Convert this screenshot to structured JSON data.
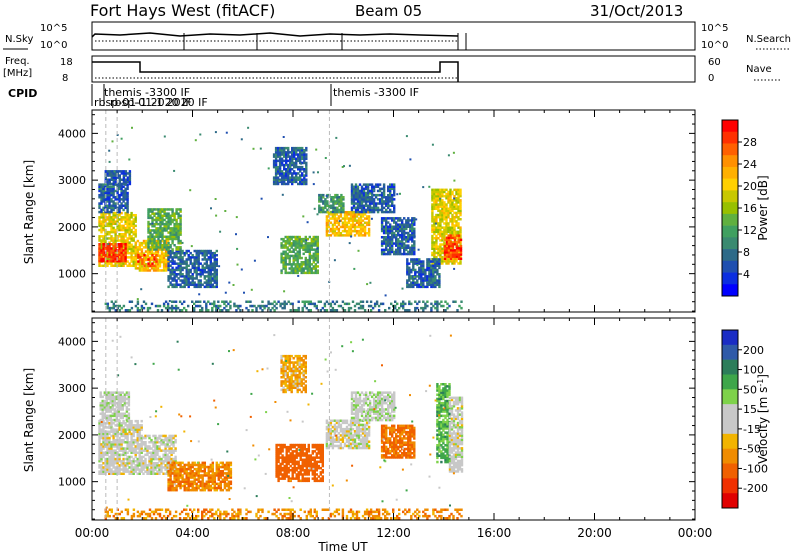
{
  "header": {
    "title": "Fort Hays West (fitACF)",
    "beam": "Beam 05",
    "date": "31/Oct/2013"
  },
  "noise_panel": {
    "left_label": "N.Sky",
    "right_label": "N.Search",
    "left_ticks": [
      "10^5",
      "10^0"
    ],
    "right_ticks": [
      "10^5",
      "10^0"
    ]
  },
  "freq_panel": {
    "left_label_1": "Freq.",
    "left_label_2": "[MHz]",
    "right_label": "Nave",
    "left_ticks": [
      "18",
      "8"
    ],
    "right_ticks": [
      "60",
      "0"
    ]
  },
  "cpid_panel": {
    "label": "CPID",
    "entries": [
      {
        "time": 0.5,
        "text": "themis -3300 IF"
      },
      {
        "time": 0.05,
        "text": "rbsp-01-1 2020 IF"
      },
      {
        "time": 0.8,
        "text": "rbsp-01-1 2020 IF"
      },
      {
        "time": 9.45,
        "text": "themis -3300 IF"
      }
    ]
  },
  "chart_data": {
    "type": "heatmap",
    "x_label": "Time UT",
    "x_ticks": [
      "00:00",
      "04:00",
      "08:00",
      "12:00",
      "16:00",
      "20:00",
      "00:00"
    ],
    "xlim": [
      0,
      24
    ],
    "panels": [
      {
        "name": "power",
        "ylabel": "Slant Range [km]",
        "ylim": [
          180,
          4500
        ],
        "y_ticks": [
          1000,
          2000,
          3000,
          4000
        ],
        "colorbar_label": "Power [dB]",
        "colorbar_ticks": [
          "28",
          "24",
          "20",
          "16",
          "12",
          "8",
          "4"
        ],
        "colorbar_colors": [
          "#ff0000",
          "#ff3000",
          "#ff6000",
          "#ff9000",
          "#ffb000",
          "#ffd000",
          "#c8c800",
          "#98c000",
          "#60b040",
          "#40a060",
          "#3a8a70",
          "#2d6a88",
          "#1f4fb0",
          "#0b2ee0",
          "#0000ff"
        ],
        "regions": [
          {
            "t0": 0.25,
            "t1": 1.7,
            "r0": 1150,
            "r1": 2300,
            "v": 18
          },
          {
            "t0": 0.25,
            "t1": 1.3,
            "r0": 1250,
            "r1": 1650,
            "v": 27
          },
          {
            "t0": 1.7,
            "t1": 3.0,
            "r0": 1050,
            "r1": 1700,
            "v": 20
          },
          {
            "t0": 1.8,
            "t1": 2.6,
            "r0": 1150,
            "r1": 1400,
            "v": 27
          },
          {
            "t0": 0.25,
            "t1": 1.4,
            "r0": 2300,
            "r1": 2900,
            "v": 6
          },
          {
            "t0": 0.5,
            "t1": 1.5,
            "r0": 2900,
            "r1": 3200,
            "v": 5
          },
          {
            "t0": 3.0,
            "t1": 5.0,
            "r0": 700,
            "r1": 1500,
            "v": 6
          },
          {
            "t0": 2.2,
            "t1": 3.5,
            "r0": 1500,
            "r1": 2400,
            "v": 12
          },
          {
            "t0": 7.5,
            "t1": 9.0,
            "r0": 1000,
            "r1": 1800,
            "v": 12
          },
          {
            "t0": 7.2,
            "t1": 8.5,
            "r0": 2900,
            "r1": 3700,
            "v": 6
          },
          {
            "t0": 9.3,
            "t1": 11.0,
            "r0": 1800,
            "r1": 2300,
            "v": 20
          },
          {
            "t0": 9.0,
            "t1": 10.0,
            "r0": 2300,
            "r1": 2700,
            "v": 10
          },
          {
            "t0": 10.3,
            "t1": 12.0,
            "r0": 2300,
            "r1": 2900,
            "v": 6
          },
          {
            "t0": 11.5,
            "t1": 12.8,
            "r0": 1400,
            "r1": 2200,
            "v": 6
          },
          {
            "t0": 13.5,
            "t1": 14.7,
            "r0": 1200,
            "r1": 2800,
            "v": 18
          },
          {
            "t0": 14.0,
            "t1": 14.7,
            "r0": 1300,
            "r1": 1800,
            "v": 26
          },
          {
            "t0": 12.5,
            "t1": 13.8,
            "r0": 700,
            "r1": 1300,
            "v": 6
          },
          {
            "t0": 0.5,
            "t1": 14.7,
            "r0": 200,
            "r1": 420,
            "v": 8
          }
        ]
      },
      {
        "name": "velocity",
        "ylabel": "Slant Range [km]",
        "ylim": [
          180,
          4500
        ],
        "y_ticks": [
          1000,
          2000,
          3000,
          4000
        ],
        "colorbar_label": "Velocity [m s^-1]",
        "colorbar_ticks": [
          "200",
          "100",
          "50",
          "15",
          "-15",
          "-50",
          "-100",
          "-200"
        ],
        "colorbar_colors": [
          "#1a2cc4",
          "#2f5aa8",
          "#2c7d5a",
          "#3ea64a",
          "#7ed24a",
          "#c8c8c8",
          "#c8c8c8",
          "#f2b400",
          "#f08c00",
          "#f06000",
          "#f03000",
          "#e00000"
        ],
        "regions": [
          {
            "t0": 0.25,
            "t1": 2.0,
            "r0": 1150,
            "r1": 2300,
            "v": 0
          },
          {
            "t0": 2.0,
            "t1": 3.3,
            "r0": 1150,
            "r1": 2000,
            "v": 0
          },
          {
            "t0": 0.3,
            "t1": 1.5,
            "r0": 2300,
            "r1": 2900,
            "v": 5
          },
          {
            "t0": 3.0,
            "t1": 5.5,
            "r0": 800,
            "r1": 1400,
            "v": -45
          },
          {
            "t0": 7.3,
            "t1": 9.2,
            "r0": 1000,
            "r1": 1800,
            "v": -70
          },
          {
            "t0": 9.3,
            "t1": 11.0,
            "r0": 1700,
            "r1": 2300,
            "v": 0
          },
          {
            "t0": 10.3,
            "t1": 12.0,
            "r0": 2300,
            "r1": 2900,
            "v": 5
          },
          {
            "t0": 11.5,
            "t1": 12.8,
            "r0": 1500,
            "r1": 2200,
            "v": -55
          },
          {
            "t0": 13.7,
            "t1": 14.2,
            "r0": 1400,
            "r1": 3100,
            "v": 35
          },
          {
            "t0": 14.2,
            "t1": 14.7,
            "r0": 1200,
            "r1": 2800,
            "v": 0
          },
          {
            "t0": 7.5,
            "t1": 8.5,
            "r0": 2900,
            "r1": 3700,
            "v": -30
          },
          {
            "t0": 0.5,
            "t1": 14.7,
            "r0": 200,
            "r1": 420,
            "v": -40
          }
        ]
      }
    ]
  }
}
